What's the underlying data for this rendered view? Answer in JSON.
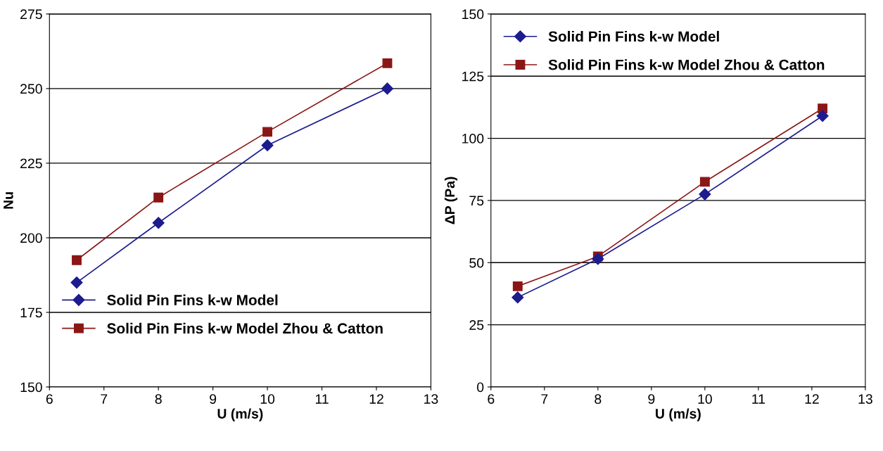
{
  "chart_data": [
    {
      "type": "line",
      "xlabel": "U (m/s)",
      "ylabel": "Nu",
      "xlim": [
        6,
        13
      ],
      "xticks": [
        6,
        7,
        8,
        9,
        10,
        11,
        12,
        13
      ],
      "ylim": [
        150,
        275
      ],
      "yticks": [
        150,
        175,
        200,
        225,
        250,
        275
      ],
      "grid": "y",
      "legend": "bottom left",
      "series": [
        {
          "name": "Solid Pin Fins k-w Model",
          "color": "#1c1c8e",
          "marker": "diamond",
          "x": [
            6.5,
            8,
            10,
            12.2
          ],
          "values": [
            185,
            205,
            231,
            250
          ]
        },
        {
          "name": "Solid Pin Fins k-w Model Zhou & Catton",
          "color": "#8b1616",
          "marker": "square",
          "x": [
            6.5,
            8,
            10,
            12.2
          ],
          "values": [
            192.5,
            213.5,
            235.5,
            258.5
          ]
        }
      ]
    },
    {
      "type": "line",
      "xlabel": "U (m/s)",
      "ylabel": "ΔP (Pa)",
      "xlim": [
        6,
        13
      ],
      "xticks": [
        6,
        7,
        8,
        9,
        10,
        11,
        12,
        13
      ],
      "ylim": [
        0,
        150
      ],
      "yticks": [
        0,
        25,
        50,
        75,
        100,
        125,
        150
      ],
      "grid": "y",
      "legend": "top left",
      "series": [
        {
          "name": "Solid Pin Fins k-w Model",
          "color": "#1c1c8e",
          "marker": "diamond",
          "x": [
            6.5,
            8,
            10,
            12.2
          ],
          "values": [
            36,
            51.5,
            77.5,
            109
          ]
        },
        {
          "name": "Solid Pin Fins k-w Model Zhou & Catton",
          "color": "#8b1616",
          "marker": "square",
          "x": [
            6.5,
            8,
            10,
            12.2
          ],
          "values": [
            40.5,
            52.5,
            82.5,
            112
          ]
        }
      ]
    }
  ]
}
